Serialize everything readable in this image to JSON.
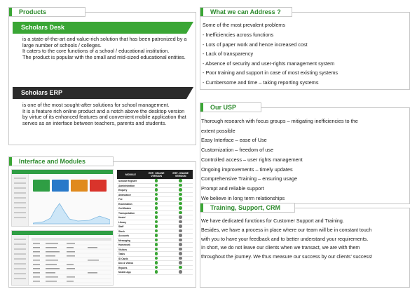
{
  "products": {
    "title": "Products",
    "desk": {
      "title": "Scholars Desk",
      "lines": [
        "is a state-of-the-art and value-rich solution that has been patronized by a large number of schools / colleges.",
        "It caters to the core functions of a school / educational institution.",
        "The product is popular with the small and mid-sized educational entities."
      ]
    },
    "erp": {
      "title": "Scholars ERP",
      "lines": [
        "is one of the most sought-after solutions for school management.",
        "It is a feature rich online product and a notch above the desktop version by virtue of its enhanced features and convenient mobile application that serves as an interface between teachers, parents and students."
      ]
    }
  },
  "address": {
    "title": "What we can Address ?",
    "intro": "Some of the most prevalent problems",
    "items": [
      "Inefficiencies across functions",
      "Lots of paper work and hence increased cost",
      "Lack of transparency",
      "Absence of security and user-rights management system",
      "Poor training and support in case of most existing systems",
      "Cumbersome and time – taking reporting systems"
    ]
  },
  "usp": {
    "title": "Our USP",
    "items": [
      "Thorough research with focus groups – mitigating inefficiencies to the",
      "extent possible",
      "Easy Interface – ease of Use",
      "Customization – freedom of use",
      "Controlled access – user rights management",
      "Ongoing improvements – timely updates",
      "Comprehensive Training – ensuring usage",
      "Prompt and reliable support",
      "We believe in long term relationships"
    ]
  },
  "interface": {
    "title": "Interface and Modules",
    "table": {
      "headers": [
        "MODULE",
        "ERP- ONLINE VERSION",
        "ERP- ONLINE VERSION"
      ],
      "rows": [
        {
          "name": "Scholar Register",
          "a": "green",
          "b": "green"
        },
        {
          "name": "Administration",
          "a": "green",
          "b": "green"
        },
        {
          "name": "Enquiry",
          "a": "green",
          "b": "green"
        },
        {
          "name": "Attendance",
          "a": "green",
          "b": "green"
        },
        {
          "name": "Fee",
          "a": "green",
          "b": "green"
        },
        {
          "name": "Examination",
          "a": "green",
          "b": "green"
        },
        {
          "name": "Certificates",
          "a": "green",
          "b": "green"
        },
        {
          "name": "Transportation",
          "a": "green",
          "b": "green"
        },
        {
          "name": "Hostel",
          "a": "green",
          "b": "gray"
        },
        {
          "name": "Library",
          "a": "green",
          "b": "gray"
        },
        {
          "name": "Staff",
          "a": "green",
          "b": "gray"
        },
        {
          "name": "Stock",
          "a": "green",
          "b": "gray"
        },
        {
          "name": "Accounts",
          "a": "green",
          "b": "gray"
        },
        {
          "name": "Messaging",
          "a": "green",
          "b": "gray"
        },
        {
          "name": "Homework",
          "a": "green",
          "b": "gray"
        },
        {
          "name": "Visitors",
          "a": "green",
          "b": "gray"
        },
        {
          "name": "Tasks",
          "a": "green",
          "b": "gray"
        },
        {
          "name": "ID Cards",
          "a": "green",
          "b": "gray"
        },
        {
          "name": "Doc & Videos",
          "a": "green",
          "b": "gray"
        },
        {
          "name": "Reports",
          "a": "green",
          "b": "green"
        },
        {
          "name": "Mobile App",
          "a": "green",
          "b": "gray"
        }
      ]
    }
  },
  "training": {
    "title": "Training, Support, CRM",
    "lines": [
      "We have dedicated functions for Customer Support and Training.",
      "Besides, we have a process in place where our team will be in constant touch",
      "with you to have your feedback and to better understand your requirements.",
      "In short, we do not leave our clients when we transact, we are with them",
      "throughout the journey. We thus measure our success by our clients' success!"
    ]
  },
  "colors": {
    "accent": "#3aa635",
    "dark": "#2b2b2b",
    "border": "#c8c8c8"
  }
}
